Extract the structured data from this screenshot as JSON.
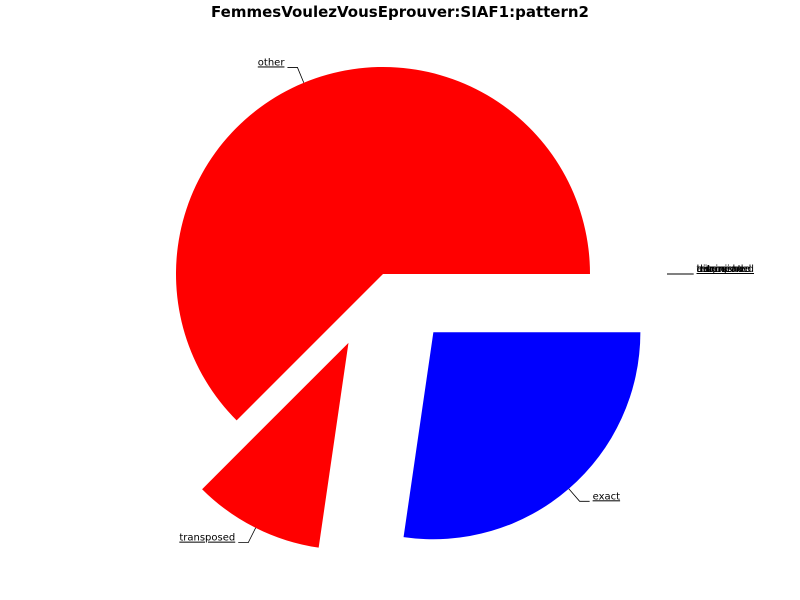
{
  "chart_data": {
    "type": "pie",
    "title": "FemmesVoulezVousEprouver:SIAF1:pattern2",
    "slices": [
      {
        "label": "other",
        "value": 62.5,
        "color": "#ff0000",
        "exploded": false
      },
      {
        "label": "transposed",
        "value": 10.2,
        "color": "#ff0000",
        "exploded": true
      },
      {
        "label": "exact",
        "value": 27.3,
        "color": "#0000ff",
        "exploded": true
      },
      {
        "label": "tritone",
        "value": 0,
        "color": "#ff0000",
        "exploded": true
      },
      {
        "label": "inversion",
        "value": 0,
        "color": "#ff0000",
        "exploded": true
      },
      {
        "label": "retrograde",
        "value": 0,
        "color": "#ff0000",
        "exploded": true
      },
      {
        "label": "diminished",
        "value": 0,
        "color": "#ff0000",
        "exploded": true
      },
      {
        "label": "augmented",
        "value": 0,
        "color": "#ff0000",
        "exploded": true
      }
    ],
    "start_angle_deg": 0,
    "direction": "counterclockwise",
    "legend": "none"
  }
}
